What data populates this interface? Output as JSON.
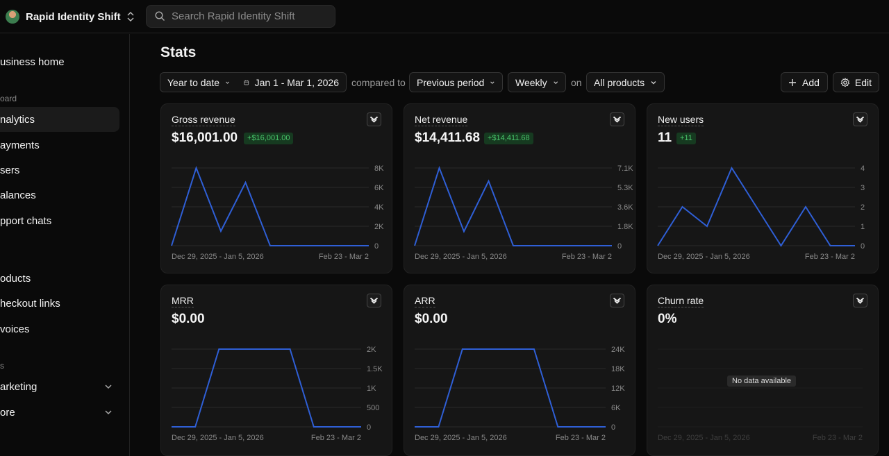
{
  "app": {
    "name": "Rapid Identity Shift",
    "search_placeholder": "Search Rapid Identity Shift"
  },
  "sidebar": {
    "items": [
      {
        "label": "usiness home",
        "top": 0
      },
      {
        "label": "nalytics",
        "active": true
      },
      {
        "label": "ayments"
      },
      {
        "label": "sers"
      },
      {
        "label": "alances"
      },
      {
        "label": "pport chats"
      },
      {
        "label": "oducts"
      },
      {
        "label": "heckout links"
      },
      {
        "label": "voices"
      },
      {
        "label": "arketing",
        "expandable": true
      },
      {
        "label": "ore",
        "expandable": true
      }
    ],
    "sections": [
      "oard",
      "s"
    ]
  },
  "main": {
    "title": "Stats",
    "filters": {
      "range": "Year to date",
      "dates": "Jan 1 - Mar 1, 2026",
      "compared_to": "compared to",
      "comparison": "Previous period",
      "interval": "Weekly",
      "on": "on",
      "products": "All products",
      "add": "Add",
      "edit": "Edit"
    }
  },
  "colors": {
    "line": "#2f5fd6",
    "badge_bg": "#163a20",
    "badge_text": "#49c46a"
  },
  "chart_data": [
    {
      "type": "line",
      "title": "Gross revenue",
      "value": "$16,001.00",
      "badge": "+$16,001.00",
      "y_ticks": [
        "8K",
        "6K",
        "4K",
        "2K",
        "0"
      ],
      "ylim": [
        0,
        8000
      ],
      "y": [
        0,
        8000,
        1500,
        6500,
        0,
        0,
        0,
        0,
        0
      ],
      "x_labels": [
        "Dec 29, 2025 - Jan 5, 2026",
        "Feb 23 - Mar 2"
      ]
    },
    {
      "type": "line",
      "title": "Net revenue",
      "value": "$14,411.68",
      "badge": "+$14,411.68",
      "y_ticks": [
        "7.1K",
        "5.3K",
        "3.6K",
        "1.8K",
        "0"
      ],
      "ylim": [
        0,
        7100
      ],
      "y": [
        0,
        7100,
        1300,
        5900,
        0,
        0,
        0,
        0,
        0
      ],
      "x_labels": [
        "Dec 29, 2025 - Jan 5, 2026",
        "Feb 23 - Mar 2"
      ]
    },
    {
      "type": "line",
      "title": "New users",
      "value": "11",
      "badge": "+11",
      "y_ticks": [
        "4",
        "3",
        "2",
        "1",
        "0"
      ],
      "ylim": [
        0,
        4
      ],
      "y": [
        0,
        2,
        1,
        4,
        2,
        0,
        2,
        0,
        0
      ],
      "x_labels": [
        "Dec 29, 2025 - Jan 5, 2026",
        "Feb 23 - Mar 2"
      ]
    },
    {
      "type": "line",
      "title": "MRR",
      "value": "$0.00",
      "badge": "",
      "y_ticks": [
        "2K",
        "1.5K",
        "1K",
        "500",
        "0"
      ],
      "ylim": [
        0,
        2000
      ],
      "y": [
        0,
        0,
        2000,
        2000,
        2000,
        2000,
        0,
        0,
        0
      ],
      "x_labels": [
        "Dec 29, 2025 - Jan 5, 2026",
        "Feb 23 - Mar 2"
      ]
    },
    {
      "type": "line",
      "title": "ARR",
      "value": "$0.00",
      "badge": "",
      "y_ticks": [
        "24K",
        "18K",
        "12K",
        "6K",
        "0"
      ],
      "ylim": [
        0,
        24000
      ],
      "y": [
        0,
        0,
        24000,
        24000,
        24000,
        24000,
        0,
        0,
        0
      ],
      "x_labels": [
        "Dec 29, 2025 - Jan 5, 2026",
        "Feb 23 - Mar 2"
      ]
    },
    {
      "type": "line",
      "title": "Churn rate",
      "value": "0%",
      "badge": "",
      "no_data": "No data available",
      "y_ticks": [],
      "y": [],
      "x_labels": [
        "Dec 29, 2025 - Jan 5, 2026",
        "Feb 23 - Mar 2"
      ]
    }
  ]
}
